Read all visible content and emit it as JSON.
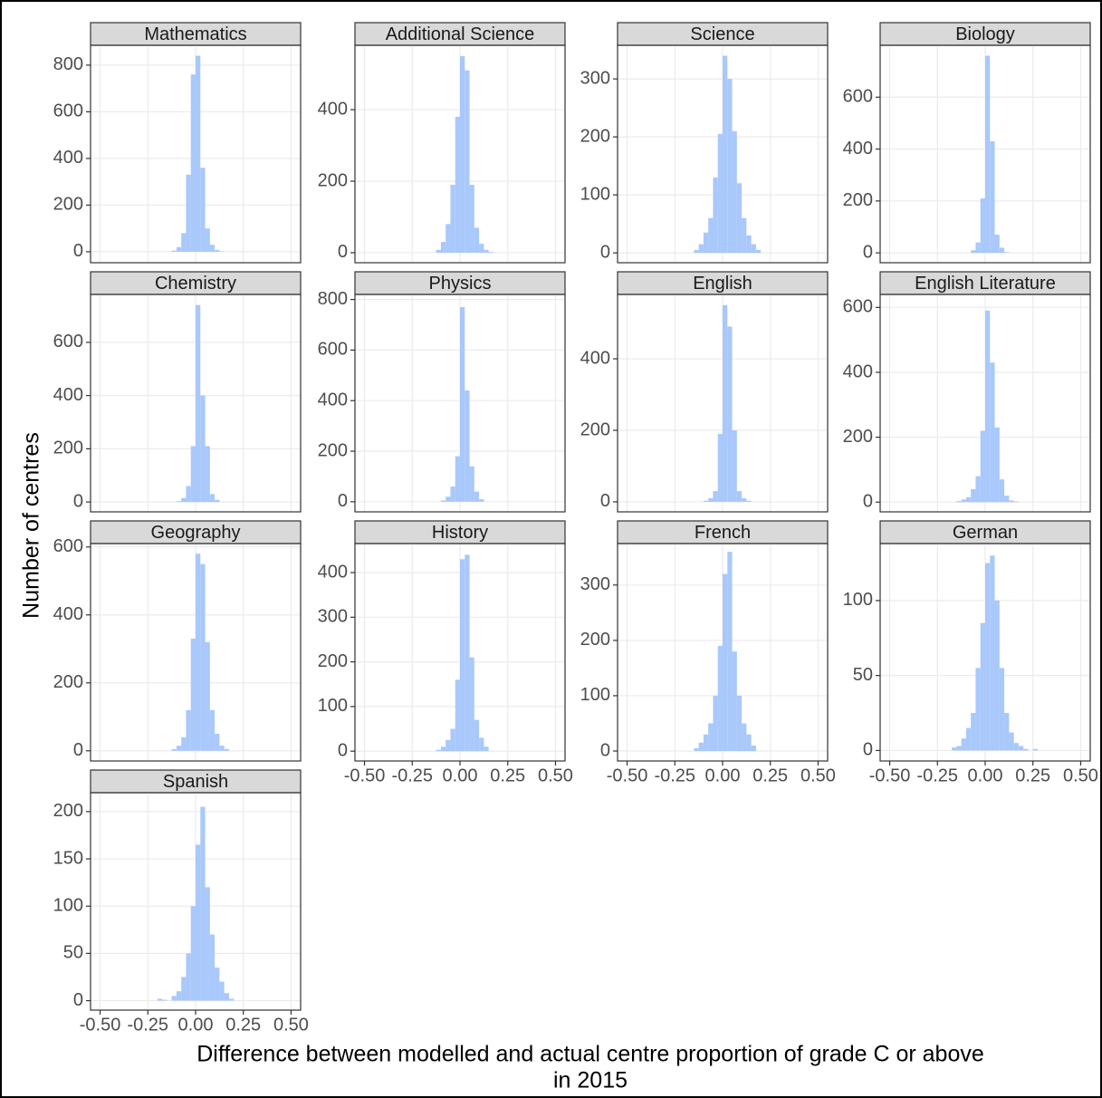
{
  "labels": {
    "x_label_line1": "Difference between modelled and actual centre proportion of grade C or above",
    "x_label_line2": "in 2015",
    "y_label": "Number of centres"
  },
  "chart_data": [
    {
      "type": "histogram",
      "title": "Mathematics",
      "color": "#a9c8fb",
      "xlim": [
        -0.55,
        0.55
      ],
      "xticks": [
        -0.5,
        -0.25,
        0,
        0.25,
        0.5
      ],
      "ylim": [
        -47,
        885
      ],
      "yticks": [
        0,
        200,
        400,
        600,
        800
      ],
      "grid": true,
      "bins": [
        -0.35,
        -0.325,
        -0.3,
        -0.275,
        -0.25,
        -0.225,
        -0.2,
        -0.175,
        -0.15,
        -0.125,
        -0.1,
        -0.075,
        -0.05,
        -0.025,
        0,
        0.025,
        0.05,
        0.075,
        0.1,
        0.125,
        0.15,
        0.175,
        0.2,
        0.225,
        0.25,
        0.275,
        0.3,
        0.325,
        0.35
      ],
      "values": [
        0,
        0,
        0,
        0,
        0,
        0,
        0,
        0,
        0,
        5,
        20,
        80,
        330,
        760,
        840,
        360,
        100,
        30,
        8,
        2,
        0,
        0,
        0,
        0,
        0,
        0,
        0,
        0
      ]
    },
    {
      "type": "histogram",
      "title": "Additional Science",
      "color": "#a9c8fb",
      "xlim": [
        -0.55,
        0.55
      ],
      "xticks": [
        -0.5,
        -0.25,
        0,
        0.25,
        0.5
      ],
      "ylim": [
        -28,
        580
      ],
      "yticks": [
        0,
        200,
        400
      ],
      "grid": true,
      "bins": [
        -0.35,
        -0.325,
        -0.3,
        -0.275,
        -0.25,
        -0.225,
        -0.2,
        -0.175,
        -0.15,
        -0.125,
        -0.1,
        -0.075,
        -0.05,
        -0.025,
        0,
        0.025,
        0.05,
        0.075,
        0.1,
        0.125,
        0.15,
        0.175,
        0.2,
        0.225,
        0.25,
        0.275,
        0.3,
        0.325,
        0.35
      ],
      "values": [
        0,
        0,
        0,
        0,
        0,
        0,
        0,
        0,
        0,
        8,
        30,
        80,
        190,
        380,
        550,
        510,
        190,
        70,
        25,
        8,
        2,
        0,
        0,
        0,
        0,
        0,
        0,
        0
      ]
    },
    {
      "type": "histogram",
      "title": "Science",
      "color": "#a9c8fb",
      "xlim": [
        -0.55,
        0.55
      ],
      "xticks": [
        -0.5,
        -0.25,
        0,
        0.25,
        0.5
      ],
      "ylim": [
        -17,
        358
      ],
      "yticks": [
        0,
        100,
        200,
        300
      ],
      "grid": true,
      "bins": [
        -0.35,
        -0.325,
        -0.3,
        -0.275,
        -0.25,
        -0.225,
        -0.2,
        -0.175,
        -0.15,
        -0.125,
        -0.1,
        -0.075,
        -0.05,
        -0.025,
        0,
        0.025,
        0.05,
        0.075,
        0.1,
        0.125,
        0.15,
        0.175,
        0.2,
        0.225,
        0.25,
        0.275,
        0.3,
        0.325,
        0.35
      ],
      "values": [
        0,
        0,
        0,
        0,
        0,
        0,
        0,
        0,
        5,
        15,
        35,
        60,
        130,
        205,
        340,
        300,
        210,
        120,
        60,
        30,
        15,
        5,
        0,
        0,
        0,
        0,
        0,
        0
      ]
    },
    {
      "type": "histogram",
      "title": "Biology",
      "color": "#a9c8fb",
      "xlim": [
        -0.55,
        0.55
      ],
      "xticks": [
        -0.5,
        -0.25,
        0,
        0.25,
        0.5
      ],
      "ylim": [
        -38,
        800
      ],
      "yticks": [
        0,
        200,
        400,
        600
      ],
      "grid": true,
      "bins": [
        -0.35,
        -0.325,
        -0.3,
        -0.275,
        -0.25,
        -0.225,
        -0.2,
        -0.175,
        -0.15,
        -0.125,
        -0.1,
        -0.075,
        -0.05,
        -0.025,
        0,
        0.025,
        0.05,
        0.075,
        0.1,
        0.125,
        0.15,
        0.175,
        0.2,
        0.225,
        0.25,
        0.275,
        0.3,
        0.325,
        0.35
      ],
      "values": [
        0,
        0,
        0,
        0,
        0,
        0,
        0,
        0,
        0,
        0,
        0,
        10,
        40,
        210,
        760,
        430,
        70,
        20,
        3,
        0,
        0,
        0,
        0,
        0,
        0,
        0,
        0,
        0
      ]
    },
    {
      "type": "histogram",
      "title": "Chemistry",
      "color": "#a9c8fb",
      "xlim": [
        -0.55,
        0.55
      ],
      "xticks": [
        -0.5,
        -0.25,
        0,
        0.25,
        0.5
      ],
      "ylim": [
        -37,
        780
      ],
      "yticks": [
        0,
        200,
        400,
        600
      ],
      "grid": true,
      "bins": [
        -0.35,
        -0.325,
        -0.3,
        -0.275,
        -0.25,
        -0.225,
        -0.2,
        -0.175,
        -0.15,
        -0.125,
        -0.1,
        -0.075,
        -0.05,
        -0.025,
        0,
        0.025,
        0.05,
        0.075,
        0.1,
        0.125,
        0.15,
        0.175,
        0.2,
        0.225,
        0.25,
        0.275,
        0.3,
        0.325,
        0.35
      ],
      "values": [
        0,
        0,
        0,
        0,
        0,
        0,
        0,
        0,
        0,
        0,
        3,
        15,
        60,
        210,
        740,
        400,
        210,
        30,
        8,
        0,
        0,
        0,
        0,
        0,
        0,
        0,
        0,
        0
      ]
    },
    {
      "type": "histogram",
      "title": "Physics",
      "color": "#a9c8fb",
      "xlim": [
        -0.55,
        0.55
      ],
      "xticks": [
        -0.5,
        -0.25,
        0,
        0.25,
        0.5
      ],
      "ylim": [
        -40,
        820
      ],
      "yticks": [
        0,
        200,
        400,
        600,
        800
      ],
      "grid": true,
      "bins": [
        -0.35,
        -0.325,
        -0.3,
        -0.275,
        -0.25,
        -0.225,
        -0.2,
        -0.175,
        -0.15,
        -0.125,
        -0.1,
        -0.075,
        -0.05,
        -0.025,
        0,
        0.025,
        0.05,
        0.075,
        0.1,
        0.125,
        0.15,
        0.175,
        0.2,
        0.225,
        0.25,
        0.275,
        0.3,
        0.325,
        0.35
      ],
      "values": [
        0,
        0,
        0,
        0,
        0,
        0,
        0,
        0,
        0,
        0,
        5,
        20,
        60,
        180,
        770,
        440,
        140,
        40,
        10,
        0,
        0,
        0,
        0,
        0,
        0,
        0,
        0,
        0
      ]
    },
    {
      "type": "histogram",
      "title": "English",
      "color": "#a9c8fb",
      "xlim": [
        -0.55,
        0.55
      ],
      "xticks": [
        -0.5,
        -0.25,
        0,
        0.25,
        0.5
      ],
      "ylim": [
        -28,
        580
      ],
      "yticks": [
        0,
        200,
        400
      ],
      "grid": true,
      "bins": [
        -0.35,
        -0.325,
        -0.3,
        -0.275,
        -0.25,
        -0.225,
        -0.2,
        -0.175,
        -0.15,
        -0.125,
        -0.1,
        -0.075,
        -0.05,
        -0.025,
        0,
        0.025,
        0.05,
        0.075,
        0.1,
        0.125,
        0.15,
        0.175,
        0.2,
        0.225,
        0.25,
        0.275,
        0.3,
        0.325,
        0.35
      ],
      "values": [
        0,
        0,
        0,
        0,
        0,
        0,
        0,
        0,
        0,
        0,
        3,
        10,
        30,
        190,
        550,
        490,
        200,
        30,
        10,
        3,
        0,
        0,
        0,
        0,
        0,
        0,
        0,
        0
      ]
    },
    {
      "type": "histogram",
      "title": "English Literature",
      "color": "#a9c8fb",
      "xlim": [
        -0.55,
        0.55
      ],
      "xticks": [
        -0.5,
        -0.25,
        0,
        0.25,
        0.5
      ],
      "ylim": [
        -30,
        640
      ],
      "yticks": [
        0,
        200,
        400,
        600
      ],
      "grid": true,
      "bins": [
        -0.35,
        -0.325,
        -0.3,
        -0.275,
        -0.25,
        -0.225,
        -0.2,
        -0.175,
        -0.15,
        -0.125,
        -0.1,
        -0.075,
        -0.05,
        -0.025,
        0,
        0.025,
        0.05,
        0.075,
        0.1,
        0.125,
        0.15,
        0.175,
        0.2,
        0.225,
        0.25,
        0.275,
        0.3,
        0.325,
        0.35
      ],
      "values": [
        0,
        0,
        0,
        0,
        0,
        0,
        0,
        0,
        3,
        8,
        15,
        40,
        80,
        220,
        590,
        430,
        230,
        70,
        20,
        5,
        2,
        0,
        0,
        0,
        0,
        0,
        0,
        0
      ]
    },
    {
      "type": "histogram",
      "title": "Geography",
      "color": "#a9c8fb",
      "xlim": [
        -0.55,
        0.55
      ],
      "xticks": [
        -0.5,
        -0.25,
        0,
        0.25,
        0.5
      ],
      "ylim": [
        -30,
        610
      ],
      "yticks": [
        0,
        200,
        400,
        600
      ],
      "grid": true,
      "bins": [
        -0.35,
        -0.325,
        -0.3,
        -0.275,
        -0.25,
        -0.225,
        -0.2,
        -0.175,
        -0.15,
        -0.125,
        -0.1,
        -0.075,
        -0.05,
        -0.025,
        0,
        0.025,
        0.05,
        0.075,
        0.1,
        0.125,
        0.15,
        0.175,
        0.2,
        0.225,
        0.25,
        0.275,
        0.3,
        0.325,
        0.35
      ],
      "values": [
        0,
        0,
        0,
        0,
        0,
        0,
        0,
        0,
        0,
        5,
        15,
        40,
        120,
        330,
        580,
        550,
        320,
        120,
        50,
        15,
        5,
        0,
        0,
        0,
        0,
        0,
        0,
        0
      ]
    },
    {
      "type": "histogram",
      "title": "History",
      "color": "#a9c8fb",
      "xlim": [
        -0.55,
        0.55
      ],
      "xticks": [
        {
          "value": -0.5,
          "label": "-0.50"
        },
        {
          "value": -0.25,
          "label": "-0.25"
        },
        {
          "value": 0,
          "label": "0.00"
        },
        {
          "value": 0.25,
          "label": "0.25"
        },
        {
          "value": 0.5,
          "label": "0.50"
        }
      ],
      "ylim": [
        -22,
        465
      ],
      "yticks": [
        0,
        100,
        200,
        300,
        400
      ],
      "grid": true,
      "bins": [
        -0.35,
        -0.325,
        -0.3,
        -0.275,
        -0.25,
        -0.225,
        -0.2,
        -0.175,
        -0.15,
        -0.125,
        -0.1,
        -0.075,
        -0.05,
        -0.025,
        0,
        0.025,
        0.05,
        0.075,
        0.1,
        0.125,
        0.15,
        0.175,
        0.2,
        0.225,
        0.25,
        0.275,
        0.3,
        0.325,
        0.35
      ],
      "values": [
        0,
        0,
        0,
        0,
        0,
        0,
        0,
        0,
        0,
        3,
        10,
        25,
        50,
        160,
        430,
        440,
        210,
        70,
        30,
        10,
        0,
        0,
        0,
        0,
        0,
        0,
        0,
        0
      ]
    },
    {
      "type": "histogram",
      "title": "French",
      "color": "#a9c8fb",
      "xlim": [
        -0.55,
        0.55
      ],
      "xticks": [
        {
          "value": -0.5,
          "label": "-0.50"
        },
        {
          "value": -0.25,
          "label": "-0.25"
        },
        {
          "value": 0,
          "label": "0.00"
        },
        {
          "value": 0.25,
          "label": "0.25"
        },
        {
          "value": 0.5,
          "label": "0.50"
        }
      ],
      "ylim": [
        -18,
        375
      ],
      "yticks": [
        0,
        100,
        200,
        300
      ],
      "grid": true,
      "bins": [
        -0.35,
        -0.325,
        -0.3,
        -0.275,
        -0.25,
        -0.225,
        -0.2,
        -0.175,
        -0.15,
        -0.125,
        -0.1,
        -0.075,
        -0.05,
        -0.025,
        0,
        0.025,
        0.05,
        0.075,
        0.1,
        0.125,
        0.15,
        0.175,
        0.2,
        0.225,
        0.25,
        0.275,
        0.3,
        0.325,
        0.35
      ],
      "values": [
        0,
        0,
        0,
        0,
        0,
        0,
        0,
        0,
        5,
        15,
        30,
        50,
        100,
        190,
        320,
        360,
        180,
        100,
        50,
        30,
        10,
        0,
        0,
        0,
        0,
        0,
        0,
        0
      ]
    },
    {
      "type": "histogram",
      "title": "German",
      "color": "#a9c8fb",
      "xlim": [
        -0.55,
        0.55
      ],
      "xticks": [
        {
          "value": -0.5,
          "label": "-0.50"
        },
        {
          "value": -0.25,
          "label": "-0.25"
        },
        {
          "value": 0,
          "label": "0.00"
        },
        {
          "value": 0.25,
          "label": "0.25"
        },
        {
          "value": 0.5,
          "label": "0.50"
        }
      ],
      "ylim": [
        -7,
        138
      ],
      "yticks": [
        0,
        50,
        100
      ],
      "grid": true,
      "bins": [
        -0.35,
        -0.325,
        -0.3,
        -0.275,
        -0.25,
        -0.225,
        -0.2,
        -0.175,
        -0.15,
        -0.125,
        -0.1,
        -0.075,
        -0.05,
        -0.025,
        0,
        0.025,
        0.05,
        0.075,
        0.1,
        0.125,
        0.15,
        0.175,
        0.2,
        0.225,
        0.25,
        0.275,
        0.3,
        0.325,
        0.35
      ],
      "values": [
        0,
        0,
        0,
        0,
        0,
        0,
        0,
        2,
        3,
        8,
        15,
        25,
        55,
        85,
        125,
        130,
        100,
        55,
        25,
        12,
        5,
        3,
        1,
        0,
        1,
        0,
        0,
        0
      ]
    },
    {
      "type": "histogram",
      "title": "Spanish",
      "color": "#a9c8fb",
      "xlim": [
        -0.55,
        0.55
      ],
      "xticks": [
        {
          "value": -0.5,
          "label": "-0.50"
        },
        {
          "value": -0.25,
          "label": "-0.25"
        },
        {
          "value": 0,
          "label": "0.00"
        },
        {
          "value": 0.25,
          "label": "0.25"
        },
        {
          "value": 0.5,
          "label": "0.50"
        }
      ],
      "ylim": [
        -10,
        220
      ],
      "yticks": [
        0,
        50,
        100,
        150,
        200
      ],
      "grid": true,
      "bins": [
        -0.35,
        -0.325,
        -0.3,
        -0.275,
        -0.25,
        -0.225,
        -0.2,
        -0.175,
        -0.15,
        -0.125,
        -0.1,
        -0.075,
        -0.05,
        -0.025,
        0,
        0.025,
        0.05,
        0.075,
        0.1,
        0.125,
        0.15,
        0.175,
        0.2,
        0.225,
        0.25,
        0.275,
        0.3,
        0.325,
        0.35
      ],
      "values": [
        0,
        0,
        0,
        0,
        0,
        0,
        2,
        1,
        0,
        5,
        10,
        25,
        50,
        100,
        165,
        205,
        120,
        70,
        35,
        20,
        8,
        2,
        0,
        0,
        0,
        0,
        0,
        0
      ]
    }
  ]
}
